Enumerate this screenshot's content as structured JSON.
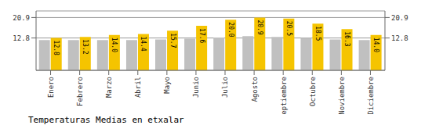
{
  "chart_data": {
    "type": "bar",
    "title": "Temperaturas Medias en etxalar",
    "categories": [
      "Enero",
      "Febrero",
      "Marzo",
      "Abril",
      "Mayo",
      "Junio",
      "Julio",
      "Agosto",
      "Septiembre",
      "Octubre",
      "Noviembre",
      "Diciembre"
    ],
    "series": [
      {
        "color": "#C0C0C0",
        "values": [
          12.0,
          12.0,
          12.0,
          12.0,
          12.2,
          12.5,
          13.0,
          13.5,
          13.2,
          12.8,
          12.2,
          12.0
        ]
      },
      {
        "color": "#F5C400",
        "values": [
          12.8,
          13.2,
          14.0,
          14.4,
          15.7,
          17.6,
          20.0,
          20.9,
          20.5,
          18.5,
          16.3,
          14.0
        ],
        "data_labels": true,
        "value_labels": [
          "12.8",
          "13.2",
          "14.0",
          "14.4",
          "15.7",
          "17.6",
          "20.0",
          "20.9",
          "20.5",
          "18.5",
          "16.3",
          "14.0"
        ]
      }
    ],
    "ylim": [
      0,
      23.5
    ],
    "yticks": [
      12.8,
      20.9
    ],
    "y2lim": [
      0,
      23.5
    ],
    "y2ticks": [
      12.8,
      20.9
    ],
    "grid": true
  }
}
